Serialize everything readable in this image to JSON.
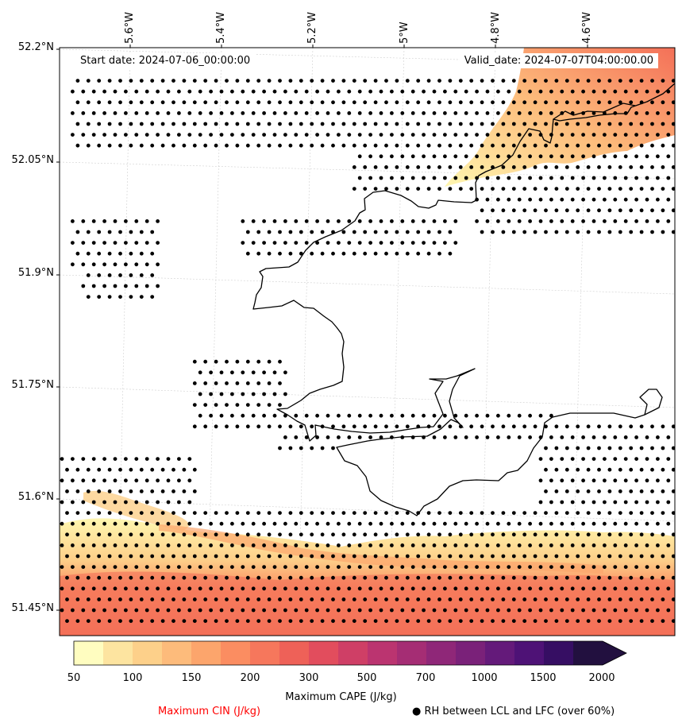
{
  "map": {
    "start_date": "Start date: 2024-07-06_00:00:00",
    "valid_date": "Valid_date: 2024-07-07T04:00:00.00",
    "lat_labels": [
      "52.2°N",
      "52.05°N",
      "51.9°N",
      "51.75°N",
      "51.6°N",
      "51.45°N"
    ],
    "lon_labels": [
      "5.6°W",
      "5.4°W",
      "5.2°W",
      "5°W",
      "4.8°W",
      "4.6°W"
    ]
  },
  "colorbar": {
    "title": "Maximum CAPE (J/kg)",
    "ticks": [
      "50",
      "100",
      "150",
      "200",
      "300",
      "500",
      "700",
      "1000",
      "1500",
      "2000"
    ],
    "colors": [
      "#fffdc0",
      "#fde4a0",
      "#fdd08a",
      "#fdbb7b",
      "#fca56c",
      "#fb8d61",
      "#f6775c",
      "#ee6158",
      "#e24d5d",
      "#cf3f66",
      "#bb3470",
      "#a52d74",
      "#8f2778",
      "#7a2179",
      "#641a7a",
      "#4e1276",
      "#360e63",
      "#22103f"
    ]
  },
  "legend": {
    "cin_label": "Maximum CIN (J/kg)",
    "cin_color": "#ff0000",
    "rh_label": "RH between LCL and LFC (over 60%)",
    "rh_marker": "●"
  }
}
